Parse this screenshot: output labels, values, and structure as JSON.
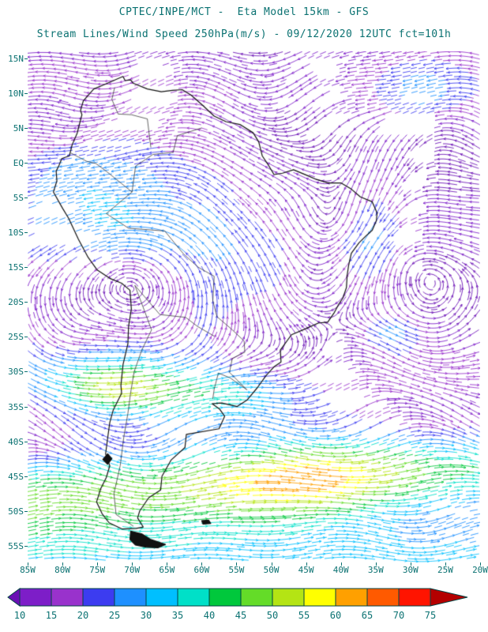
{
  "header": {
    "line1": "CPTEC/INPE/MCT -  Eta Model 15km - GFS",
    "line2": "Stream Lines/Wind Speed 250hPa(m/s) - 09/12/2020 12UTC fct=101h"
  },
  "colors": {
    "text": "#0b7272",
    "coast": "#111111",
    "border": "#222222",
    "bar_outline": "#054545",
    "background": "#ffffff"
  },
  "chart_data": {
    "type": "streamline-map",
    "title": "CPTEC/INPE/MCT - Eta Model 15km - GFS",
    "subtitle": "Stream Lines/Wind Speed 250hPa(m/s) - 09/12/2020 12UTC fct=101h",
    "units": "m/s",
    "extent": {
      "lon": [
        -85,
        -20
      ],
      "lat": [
        -57.4,
        16
      ]
    },
    "lat_ticks": [
      {
        "label": "15N",
        "value": 15
      },
      {
        "label": "10N",
        "value": 10
      },
      {
        "label": "5N",
        "value": 5
      },
      {
        "label": "EQ",
        "value": 0
      },
      {
        "label": "5S",
        "value": -5
      },
      {
        "label": "10S",
        "value": -10
      },
      {
        "label": "15S",
        "value": -15
      },
      {
        "label": "20S",
        "value": -20
      },
      {
        "label": "25S",
        "value": -25
      },
      {
        "label": "30S",
        "value": -30
      },
      {
        "label": "35S",
        "value": -35
      },
      {
        "label": "40S",
        "value": -40
      },
      {
        "label": "45S",
        "value": -45
      },
      {
        "label": "50S",
        "value": -50
      },
      {
        "label": "55S",
        "value": -55
      }
    ],
    "lon_ticks": [
      {
        "label": "85W",
        "value": -85
      },
      {
        "label": "80W",
        "value": -80
      },
      {
        "label": "75W",
        "value": -75
      },
      {
        "label": "70W",
        "value": -70
      },
      {
        "label": "65W",
        "value": -65
      },
      {
        "label": "60W",
        "value": -60
      },
      {
        "label": "55W",
        "value": -55
      },
      {
        "label": "50W",
        "value": -50
      },
      {
        "label": "45W",
        "value": -45
      },
      {
        "label": "40W",
        "value": -40
      },
      {
        "label": "35W",
        "value": -35
      },
      {
        "label": "30W",
        "value": -30
      },
      {
        "label": "25W",
        "value": -25
      },
      {
        "label": "20W",
        "value": -20
      }
    ],
    "colorbar": {
      "step": 5,
      "levels": [
        10,
        15,
        20,
        25,
        30,
        35,
        40,
        45,
        50,
        55,
        60,
        65,
        70,
        75
      ],
      "labels": [
        "10",
        "15",
        "20",
        "25",
        "30",
        "35",
        "40",
        "45",
        "50",
        "55",
        "60",
        "65",
        "70",
        "75"
      ],
      "under_color": "#6a10b4",
      "over_color": "#b40000",
      "cell_colors": [
        "#7d1ec8",
        "#9932cc",
        "#3c3cf0",
        "#1e90ff",
        "#00bfff",
        "#00e0c8",
        "#00c83c",
        "#64dc28",
        "#b4e414",
        "#ffff00",
        "#ffa000",
        "#ff5a00",
        "#ff1400"
      ]
    },
    "field": {
      "zonal_bands": [
        {
          "center": 12,
          "width": 7,
          "amp": -11
        },
        {
          "center": -2,
          "width": 9,
          "amp": -12
        },
        {
          "center": -12,
          "width": 6,
          "amp": -9
        },
        {
          "center": -30,
          "width": 5,
          "amp": 16
        },
        {
          "center": -57,
          "width": 8,
          "amp": 30
        }
      ],
      "streaks": [
        {
          "lat": 9,
          "latw": 5,
          "lon": -30,
          "lonw": 9,
          "amp": -10
        },
        {
          "lat": 13,
          "latw": 4,
          "lon": -80,
          "lonw": 8,
          "amp": -8
        },
        {
          "lat": -2,
          "latw": 3,
          "lon": -44,
          "lonw": 6,
          "amp": -9
        },
        {
          "lat": -36,
          "latw": 4,
          "lon": -55,
          "lonw": 20,
          "amp": 14
        },
        {
          "lat": -32.5,
          "latw": 3.5,
          "lon": -73,
          "lonw": 8,
          "amp": 26
        },
        {
          "lat": -33,
          "latw": 3.5,
          "lon": -57,
          "lonw": 12,
          "amp": 14
        },
        {
          "lat": -24,
          "latw": 3,
          "lon": -34,
          "lonw": 7,
          "amp": 20
        }
      ],
      "jet": {
        "amp_base": 36,
        "amp_extra": 24,
        "lon_center": -45,
        "lon_width": 14,
        "lat_center": -46,
        "lat_tilt": 0.06,
        "lat_ref_lon": -60,
        "width": 6
      },
      "waves": [
        {
          "amp": 11,
          "k": 0.22,
          "phase": 40,
          "lat_factor": 0.15,
          "center": -41,
          "width": 11
        },
        {
          "amp": 6,
          "k": 0.3,
          "phase": 70,
          "lat_factor": 0,
          "center": -53,
          "width": 6
        },
        {
          "amp": 6,
          "k": 0.3,
          "phase": 20,
          "lat_factor": 0,
          "center": 10,
          "width": 6
        },
        {
          "amp": 5,
          "k": 0.35,
          "phase": 10,
          "lat_factor": 0,
          "center": -25,
          "width": 8
        },
        {
          "amp": 3,
          "k": 0.4,
          "phase": 0,
          "lat_factor": 0,
          "center": -5,
          "width": 6
        }
      ],
      "vortices": [
        {
          "lon": -70.5,
          "lat": -16.5,
          "r": 9,
          "s": 14,
          "dir": 1
        },
        {
          "lon": -41.5,
          "lat": -9,
          "r": 6.5,
          "s": 11,
          "dir": -1
        },
        {
          "lon": -44.5,
          "lat": -18,
          "r": 5,
          "s": 9,
          "dir": -1
        },
        {
          "lon": -31,
          "lat": -13.5,
          "r": 6,
          "s": 8,
          "dir": 1
        },
        {
          "lon": -79,
          "lat": 3,
          "r": 6,
          "s": 6,
          "dir": -1
        },
        {
          "lon": -27,
          "lat": 7,
          "r": 7,
          "s": 8,
          "dir": 1
        }
      ]
    },
    "coastline": [
      [
        [
          -71.3,
          12.4
        ],
        [
          -74.3,
          11.1
        ],
        [
          -75.5,
          10.6
        ],
        [
          -77.0,
          8.9
        ],
        [
          -77.4,
          7.5
        ],
        [
          -77.2,
          6.9
        ],
        [
          -77.9,
          4.2
        ],
        [
          -78.6,
          2.6
        ],
        [
          -79.0,
          1.0
        ],
        [
          -80.1,
          0.6
        ],
        [
          -80.5,
          -0.4
        ],
        [
          -80.9,
          -1.2
        ],
        [
          -80.8,
          -2.6
        ],
        [
          -81.3,
          -4.2
        ],
        [
          -80.0,
          -6.5
        ],
        [
          -79.1,
          -8.0
        ],
        [
          -77.7,
          -11.0
        ],
        [
          -76.3,
          -13.6
        ],
        [
          -75.0,
          -15.4
        ],
        [
          -73.2,
          -16.6
        ],
        [
          -71.5,
          -17.3
        ],
        [
          -70.3,
          -18.3
        ],
        [
          -70.1,
          -21.0
        ],
        [
          -70.5,
          -23.5
        ],
        [
          -70.6,
          -26.0
        ],
        [
          -71.3,
          -29.0
        ],
        [
          -71.6,
          -32.0
        ],
        [
          -71.5,
          -33.1
        ],
        [
          -72.7,
          -35.5
        ],
        [
          -73.2,
          -37.3
        ],
        [
          -73.5,
          -39.5
        ],
        [
          -73.8,
          -41.8
        ],
        [
          -73.2,
          -43.5
        ],
        [
          -73.7,
          -45.2
        ],
        [
          -74.5,
          -46.8
        ],
        [
          -75.1,
          -48.7
        ],
        [
          -74.3,
          -50.4
        ],
        [
          -73.3,
          -51.7
        ],
        [
          -71.4,
          -52.6
        ],
        [
          -69.4,
          -52.5
        ],
        [
          -68.4,
          -52.3
        ],
        [
          -69.2,
          -51.0
        ],
        [
          -68.9,
          -50.0
        ],
        [
          -67.6,
          -48.1
        ],
        [
          -65.9,
          -47.0
        ],
        [
          -65.7,
          -45.0
        ],
        [
          -64.4,
          -42.7
        ],
        [
          -62.4,
          -40.9
        ],
        [
          -62.2,
          -39.0
        ],
        [
          -57.5,
          -38.2
        ],
        [
          -56.7,
          -36.4
        ],
        [
          -57.4,
          -35.4
        ],
        [
          -58.5,
          -34.6
        ],
        [
          -57.1,
          -34.5
        ],
        [
          -54.9,
          -35.0
        ],
        [
          -53.5,
          -34.1
        ],
        [
          -52.0,
          -32.3
        ],
        [
          -50.7,
          -30.5
        ],
        [
          -49.6,
          -29.3
        ],
        [
          -48.6,
          -28.6
        ],
        [
          -48.7,
          -26.9
        ],
        [
          -47.1,
          -24.7
        ],
        [
          -45.0,
          -23.8
        ],
        [
          -43.2,
          -23.0
        ],
        [
          -41.9,
          -22.9
        ],
        [
          -41.0,
          -21.6
        ],
        [
          -40.3,
          -20.3
        ],
        [
          -39.7,
          -19.4
        ],
        [
          -39.2,
          -17.9
        ],
        [
          -39.1,
          -16.2
        ],
        [
          -38.9,
          -14.8
        ],
        [
          -38.5,
          -13.0
        ],
        [
          -37.4,
          -11.5
        ],
        [
          -36.4,
          -10.5
        ],
        [
          -35.5,
          -9.7
        ],
        [
          -34.9,
          -8.3
        ],
        [
          -34.8,
          -7.2
        ],
        [
          -35.5,
          -5.6
        ],
        [
          -37.2,
          -4.9
        ],
        [
          -38.6,
          -3.7
        ],
        [
          -40.0,
          -2.9
        ],
        [
          -41.8,
          -2.9
        ],
        [
          -43.5,
          -2.4
        ],
        [
          -44.9,
          -1.8
        ],
        [
          -46.8,
          -1.0
        ],
        [
          -48.4,
          -1.5
        ],
        [
          -49.6,
          -1.7
        ],
        [
          -50.5,
          -0.2
        ],
        [
          -51.3,
          1.0
        ],
        [
          -51.8,
          3.0
        ],
        [
          -52.6,
          4.3
        ],
        [
          -54.5,
          5.5
        ],
        [
          -56.5,
          5.9
        ],
        [
          -58.2,
          6.7
        ],
        [
          -59.8,
          8.2
        ],
        [
          -61.5,
          9.7
        ],
        [
          -62.8,
          10.5
        ],
        [
          -64.2,
          10.4
        ],
        [
          -65.8,
          10.2
        ],
        [
          -67.8,
          10.6
        ],
        [
          -69.8,
          11.4
        ],
        [
          -70.2,
          11.9
        ],
        [
          -71.0,
          11.8
        ],
        [
          -71.3,
          12.4
        ]
      ]
    ],
    "borders": [
      [
        [
          -60,
          5
        ],
        [
          -63.5,
          3.9
        ],
        [
          -64.1,
          1.5
        ],
        [
          -67,
          1.2
        ],
        [
          -69.5,
          -0.5
        ],
        [
          -70,
          -4.2
        ],
        [
          -73.7,
          -7.3
        ],
        [
          -70.5,
          -9.4
        ],
        [
          -65.3,
          -9.8
        ],
        [
          -62.6,
          -13.1
        ],
        [
          -60.5,
          -15
        ],
        [
          -58.2,
          -16.3
        ],
        [
          -58.4,
          -19.8
        ],
        [
          -57.8,
          -22.1
        ],
        [
          -55.7,
          -23.9
        ],
        [
          -53.9,
          -25.6
        ],
        [
          -53.8,
          -27.2
        ],
        [
          -55.6,
          -28.1
        ],
        [
          -56.0,
          -30.1
        ],
        [
          -53.5,
          -32.6
        ]
      ],
      [
        [
          -69.6,
          -17.6
        ],
        [
          -68.2,
          -21.3
        ],
        [
          -67.2,
          -24.0
        ],
        [
          -68.6,
          -26.9
        ],
        [
          -69.7,
          -30.0
        ],
        [
          -70.2,
          -33.0
        ],
        [
          -70.6,
          -36.0
        ],
        [
          -71.2,
          -39.5
        ],
        [
          -71.7,
          -43.5
        ],
        [
          -72.6,
          -47.5
        ],
        [
          -72.3,
          -50.5
        ],
        [
          -69.8,
          -52.2
        ]
      ],
      [
        [
          -78.8,
          1.4
        ],
        [
          -76.5,
          0.2
        ],
        [
          -75.2,
          -0.1
        ],
        [
          -73.6,
          -1.3
        ],
        [
          -70.0,
          -4.2
        ]
      ],
      [
        [
          -69.6,
          -17.6
        ],
        [
          -66.0,
          -21.8
        ],
        [
          -62.3,
          -22.2
        ],
        [
          -60.6,
          -23.5
        ],
        [
          -58.2,
          -24.9
        ]
      ],
      [
        [
          -53.5,
          -32.6
        ],
        [
          -55.9,
          -30.9
        ],
        [
          -57.6,
          -30.2
        ],
        [
          -58.2,
          -32.5
        ],
        [
          -58.4,
          -33.9
        ]
      ],
      [
        [
          -72.5,
          10.8
        ],
        [
          -72.9,
          9.1
        ],
        [
          -72.0,
          7.0
        ],
        [
          -70.1,
          6.9
        ],
        [
          -67.8,
          6.3
        ],
        [
          -67.5,
          3.8
        ],
        [
          -67.3,
          2.2
        ]
      ]
    ],
    "filled_islands": [
      [
        [
          -70.2,
          -52.9
        ],
        [
          -68.6,
          -53.3
        ],
        [
          -67.3,
          -54.1
        ],
        [
          -65.2,
          -54.8
        ],
        [
          -66.3,
          -55.3
        ],
        [
          -68.0,
          -55.2
        ],
        [
          -69.5,
          -54.9
        ],
        [
          -70.3,
          -54.1
        ]
      ],
      [
        [
          -60.0,
          -51.4
        ],
        [
          -59.0,
          -51.3
        ],
        [
          -58.7,
          -51.8
        ],
        [
          -59.8,
          -51.9
        ]
      ],
      [
        [
          -73.5,
          -41.8
        ],
        [
          -72.9,
          -42.5
        ],
        [
          -73.5,
          -43.3
        ],
        [
          -74.2,
          -42.6
        ]
      ]
    ]
  }
}
